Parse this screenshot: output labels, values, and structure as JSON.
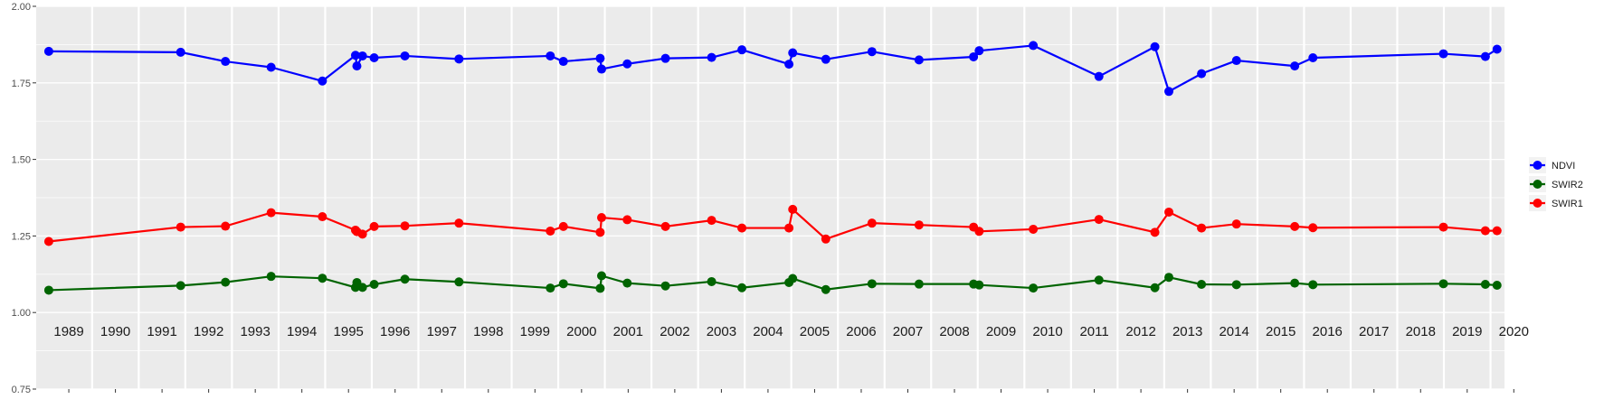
{
  "chart_data": {
    "type": "line",
    "title": "",
    "xlabel": "",
    "ylabel": "",
    "xlim": [
      1988.8,
      2020.3
    ],
    "ylim": [
      0.75,
      2.0
    ],
    "y_ticks": [
      "0.75",
      "1.00",
      "1.25",
      "1.50",
      "1.75",
      "2.00"
    ],
    "year_labels": [
      "1989",
      "1990",
      "1991",
      "1992",
      "1993",
      "1994",
      "1995",
      "1996",
      "1997",
      "1998",
      "1999",
      "2000",
      "2001",
      "2002",
      "2003",
      "2004",
      "2005",
      "2006",
      "2007",
      "2008",
      "2009",
      "2010",
      "2011",
      "2012",
      "2013",
      "2014",
      "2015",
      "2016",
      "2017",
      "2018",
      "2019",
      "2020"
    ],
    "grid": true,
    "legend_position": "right",
    "series": [
      {
        "name": "NDVI",
        "color": "#0000ff",
        "points": [
          {
            "x": 1989.07,
            "y": 1.853
          },
          {
            "x": 1991.9,
            "y": 1.85
          },
          {
            "x": 1992.86,
            "y": 1.82
          },
          {
            "x": 1993.84,
            "y": 1.801
          },
          {
            "x": 1994.94,
            "y": 1.756
          },
          {
            "x": 1995.65,
            "y": 1.84
          },
          {
            "x": 1995.68,
            "y": 1.805
          },
          {
            "x": 1995.8,
            "y": 1.838
          },
          {
            "x": 1996.05,
            "y": 1.832
          },
          {
            "x": 1996.71,
            "y": 1.838
          },
          {
            "x": 1997.87,
            "y": 1.828
          },
          {
            "x": 1999.83,
            "y": 1.838
          },
          {
            "x": 2000.11,
            "y": 1.82
          },
          {
            "x": 2000.9,
            "y": 1.83
          },
          {
            "x": 2000.93,
            "y": 1.795
          },
          {
            "x": 2001.48,
            "y": 1.812
          },
          {
            "x": 2002.3,
            "y": 1.83
          },
          {
            "x": 2003.29,
            "y": 1.833
          },
          {
            "x": 2003.94,
            "y": 1.858
          },
          {
            "x": 2004.95,
            "y": 1.811
          },
          {
            "x": 2005.03,
            "y": 1.848
          },
          {
            "x": 2005.74,
            "y": 1.827
          },
          {
            "x": 2006.73,
            "y": 1.852
          },
          {
            "x": 2007.74,
            "y": 1.825
          },
          {
            "x": 2008.91,
            "y": 1.835
          },
          {
            "x": 2009.03,
            "y": 1.855
          },
          {
            "x": 2010.19,
            "y": 1.872
          },
          {
            "x": 2011.6,
            "y": 1.771
          },
          {
            "x": 2012.8,
            "y": 1.868
          },
          {
            "x": 2013.1,
            "y": 1.722
          },
          {
            "x": 2013.8,
            "y": 1.78
          },
          {
            "x": 2014.55,
            "y": 1.823
          },
          {
            "x": 2015.8,
            "y": 1.805
          },
          {
            "x": 2016.19,
            "y": 1.832
          },
          {
            "x": 2018.99,
            "y": 1.845
          },
          {
            "x": 2019.89,
            "y": 1.836
          },
          {
            "x": 2020.14,
            "y": 1.86
          }
        ]
      },
      {
        "name": "SWIR2",
        "color": "#006400",
        "points": [
          {
            "x": 1989.07,
            "y": 1.073
          },
          {
            "x": 1991.9,
            "y": 1.088
          },
          {
            "x": 1992.86,
            "y": 1.099
          },
          {
            "x": 1993.84,
            "y": 1.118
          },
          {
            "x": 1994.94,
            "y": 1.112
          },
          {
            "x": 1995.65,
            "y": 1.082
          },
          {
            "x": 1995.68,
            "y": 1.098
          },
          {
            "x": 1995.8,
            "y": 1.082
          },
          {
            "x": 1996.05,
            "y": 1.092
          },
          {
            "x": 1996.71,
            "y": 1.109
          },
          {
            "x": 1997.87,
            "y": 1.1
          },
          {
            "x": 1999.83,
            "y": 1.08
          },
          {
            "x": 2000.11,
            "y": 1.094
          },
          {
            "x": 2000.9,
            "y": 1.079
          },
          {
            "x": 2000.93,
            "y": 1.12
          },
          {
            "x": 2001.48,
            "y": 1.096
          },
          {
            "x": 2002.3,
            "y": 1.087
          },
          {
            "x": 2003.29,
            "y": 1.101
          },
          {
            "x": 2003.94,
            "y": 1.081
          },
          {
            "x": 2004.95,
            "y": 1.098
          },
          {
            "x": 2005.03,
            "y": 1.111
          },
          {
            "x": 2005.74,
            "y": 1.075
          },
          {
            "x": 2006.73,
            "y": 1.094
          },
          {
            "x": 2007.74,
            "y": 1.093
          },
          {
            "x": 2008.91,
            "y": 1.093
          },
          {
            "x": 2009.03,
            "y": 1.09
          },
          {
            "x": 2010.19,
            "y": 1.08
          },
          {
            "x": 2011.6,
            "y": 1.106
          },
          {
            "x": 2012.8,
            "y": 1.081
          },
          {
            "x": 2013.1,
            "y": 1.115
          },
          {
            "x": 2013.8,
            "y": 1.092
          },
          {
            "x": 2014.55,
            "y": 1.091
          },
          {
            "x": 2015.8,
            "y": 1.096
          },
          {
            "x": 2016.19,
            "y": 1.091
          },
          {
            "x": 2018.99,
            "y": 1.094
          },
          {
            "x": 2019.89,
            "y": 1.092
          },
          {
            "x": 2020.14,
            "y": 1.089
          }
        ]
      },
      {
        "name": "SWIR1",
        "color": "#ff0000",
        "points": [
          {
            "x": 1989.07,
            "y": 1.232
          },
          {
            "x": 1991.9,
            "y": 1.279
          },
          {
            "x": 1992.86,
            "y": 1.282
          },
          {
            "x": 1993.84,
            "y": 1.326
          },
          {
            "x": 1994.94,
            "y": 1.313
          },
          {
            "x": 1995.65,
            "y": 1.269
          },
          {
            "x": 1995.68,
            "y": 1.264
          },
          {
            "x": 1995.8,
            "y": 1.256
          },
          {
            "x": 1996.05,
            "y": 1.281
          },
          {
            "x": 1996.71,
            "y": 1.283
          },
          {
            "x": 1997.87,
            "y": 1.292
          },
          {
            "x": 1999.83,
            "y": 1.266
          },
          {
            "x": 2000.11,
            "y": 1.281
          },
          {
            "x": 2000.9,
            "y": 1.262
          },
          {
            "x": 2000.93,
            "y": 1.31
          },
          {
            "x": 2001.48,
            "y": 1.303
          },
          {
            "x": 2002.3,
            "y": 1.281
          },
          {
            "x": 2003.29,
            "y": 1.301
          },
          {
            "x": 2003.94,
            "y": 1.276
          },
          {
            "x": 2004.95,
            "y": 1.276
          },
          {
            "x": 2005.03,
            "y": 1.337
          },
          {
            "x": 2005.74,
            "y": 1.24
          },
          {
            "x": 2006.73,
            "y": 1.292
          },
          {
            "x": 2007.74,
            "y": 1.286
          },
          {
            "x": 2008.91,
            "y": 1.279
          },
          {
            "x": 2009.03,
            "y": 1.265
          },
          {
            "x": 2010.19,
            "y": 1.272
          },
          {
            "x": 2011.6,
            "y": 1.304
          },
          {
            "x": 2012.8,
            "y": 1.262
          },
          {
            "x": 2013.1,
            "y": 1.328
          },
          {
            "x": 2013.8,
            "y": 1.276
          },
          {
            "x": 2014.55,
            "y": 1.289
          },
          {
            "x": 2015.8,
            "y": 1.281
          },
          {
            "x": 2016.19,
            "y": 1.277
          },
          {
            "x": 2018.99,
            "y": 1.279
          },
          {
            "x": 2019.89,
            "y": 1.267
          },
          {
            "x": 2020.14,
            "y": 1.267
          }
        ]
      }
    ]
  },
  "legend": {
    "items": [
      {
        "label": "NDVI",
        "color": "#0000ff"
      },
      {
        "label": "SWIR2",
        "color": "#006400"
      },
      {
        "label": "SWIR1",
        "color": "#ff0000"
      }
    ]
  },
  "colors": {
    "panel_background": "#ebebeb",
    "grid_major": "#ffffff"
  }
}
